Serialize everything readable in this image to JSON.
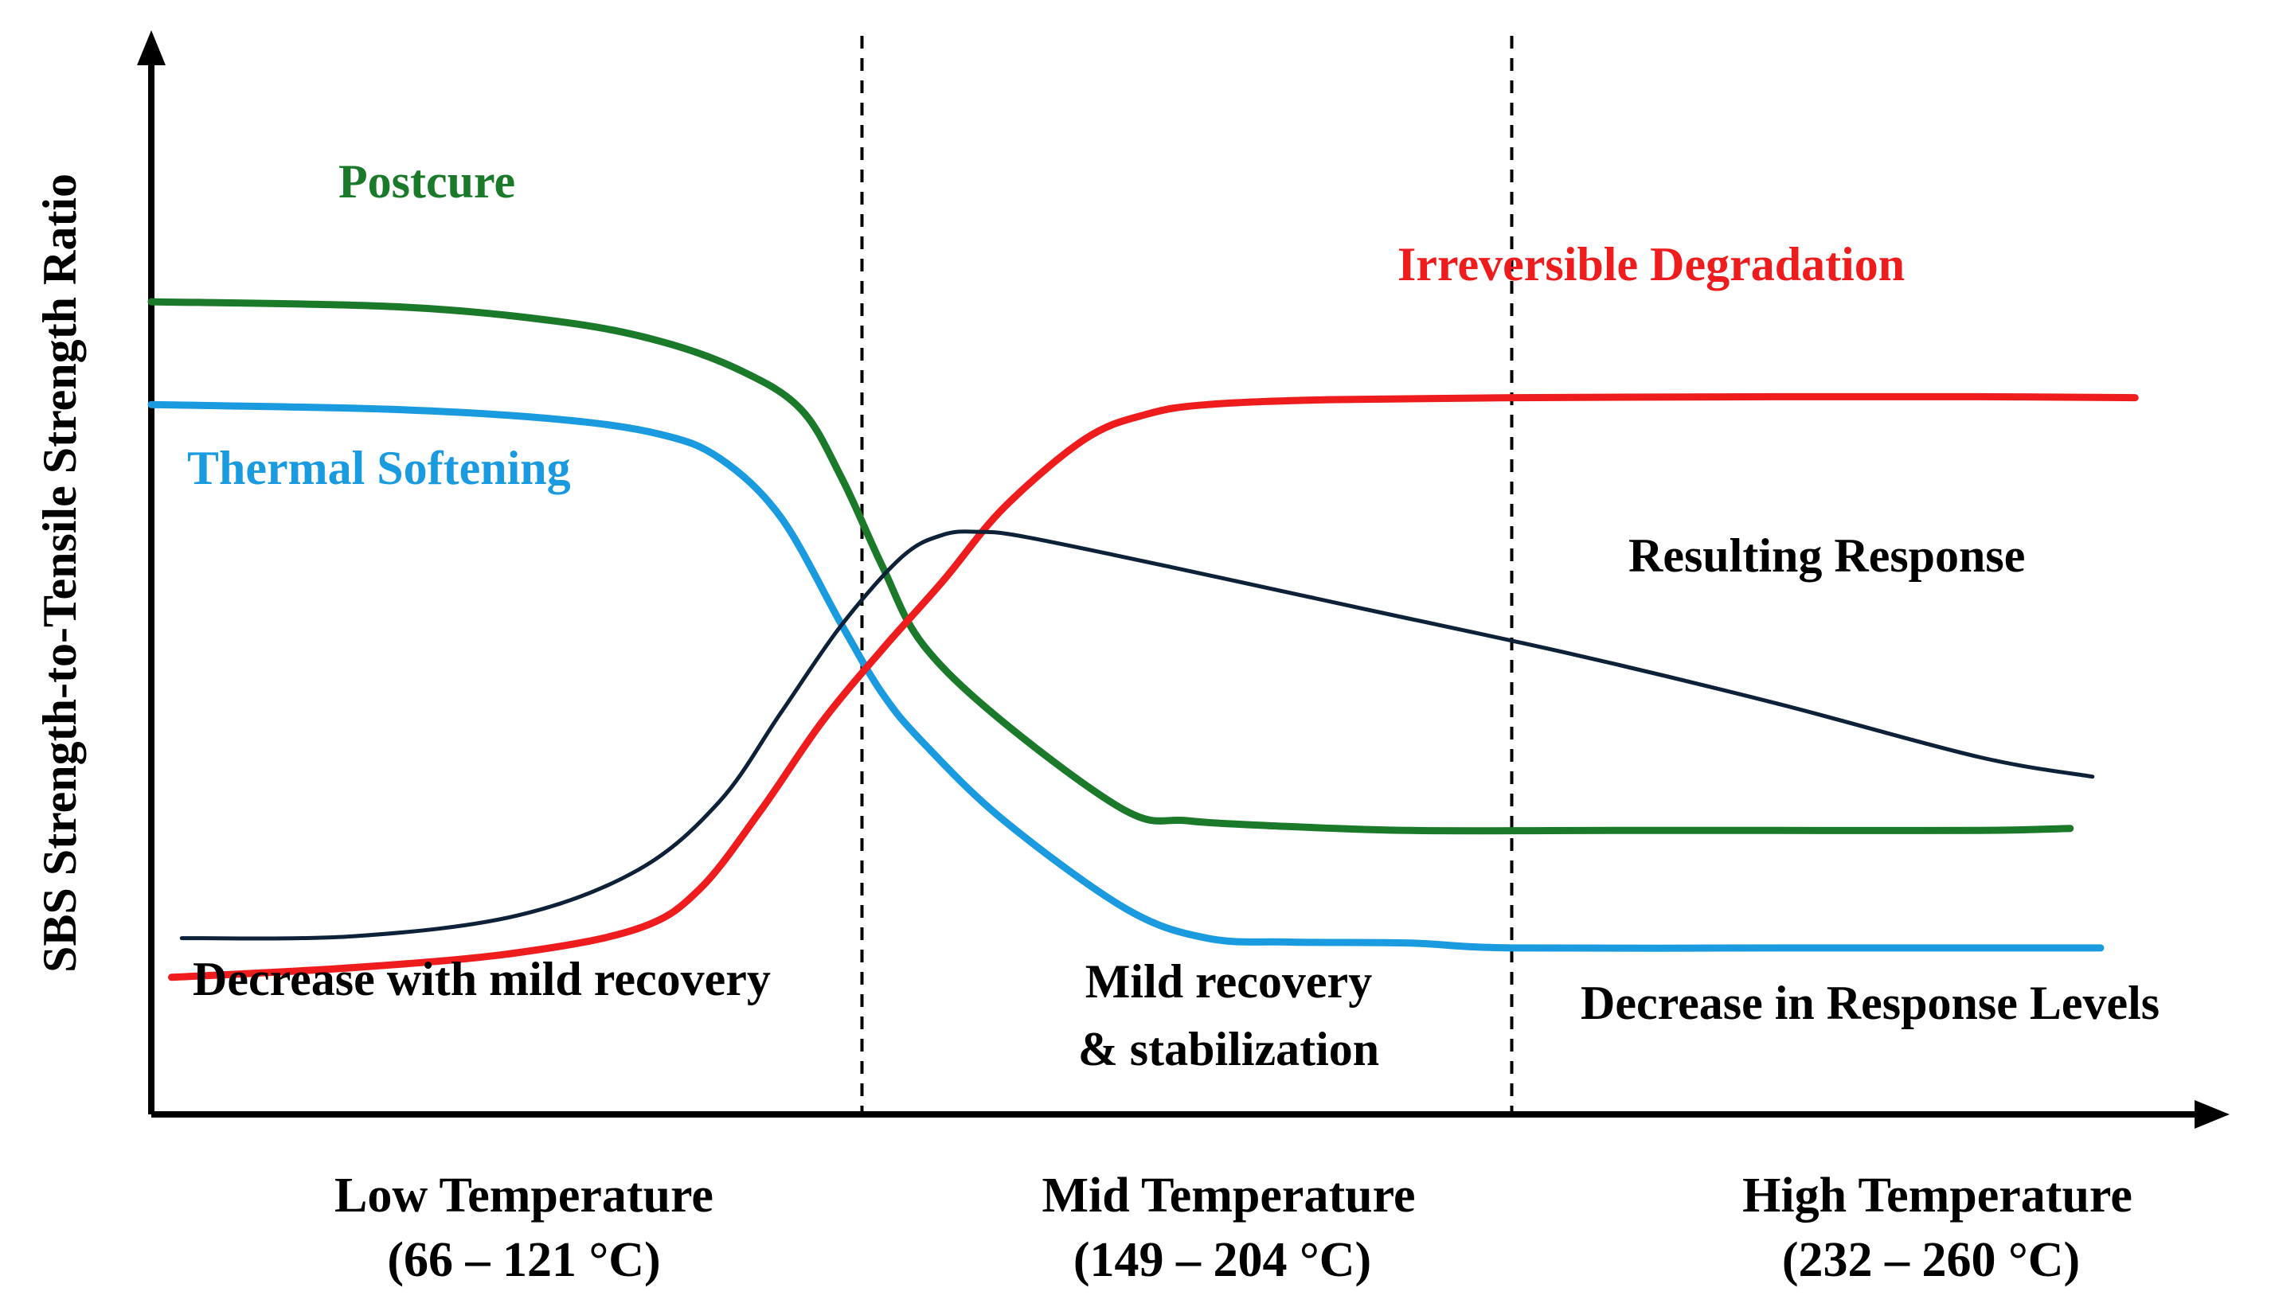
{
  "chart_data": {
    "type": "line",
    "title": "",
    "ylabel": "SBS Strength-to-Tensile Strength Ratio",
    "xlabel": "",
    "xlim": [
      0,
      100
    ],
    "ylim": [
      0,
      100
    ],
    "grid": false,
    "legend": "none (inline curve labels)",
    "regions": [
      {
        "name": "Low Temperature",
        "range": "(66 – 121 °C)",
        "note": "Decrease with mild recovery"
      },
      {
        "name": "Mid Temperature",
        "range": "(149 – 204 °C)",
        "note_line1": "Mild recovery",
        "note_line2": "& stabilization"
      },
      {
        "name": "High Temperature",
        "range": "(232 – 260 °C)",
        "note": "Decrease in Response Levels"
      }
    ],
    "region_boundaries": [
      35,
      67
    ],
    "series": [
      {
        "name": "Postcure",
        "color": "#1b7a2a",
        "x": [
          0,
          12,
          20,
          25,
          29,
          32,
          34,
          36,
          38,
          42,
          48,
          51,
          55,
          62,
          72,
          80,
          90,
          94.5
        ],
        "y": [
          83,
          82.5,
          81,
          79,
          76,
          72,
          65,
          56,
          48,
          40,
          31,
          30,
          29.5,
          29,
          29,
          29,
          29,
          29.2
        ]
      },
      {
        "name": "Thermal Softening",
        "color": "#1a9be0",
        "x": [
          0,
          12,
          20,
          25,
          28,
          31,
          34,
          36,
          38,
          42,
          48,
          52,
          56,
          62,
          67,
          80,
          90,
          96
        ],
        "y": [
          72.5,
          72,
          71,
          69.5,
          67,
          61,
          50,
          43,
          38,
          30,
          21,
          18,
          17.6,
          17.5,
          17,
          17,
          17,
          17
        ]
      },
      {
        "name": "Irreversible Degradation",
        "color": "#ee1c1c",
        "x": [
          1,
          10,
          18,
          24,
          27,
          30,
          33,
          36,
          39,
          42,
          46,
          49,
          52,
          58,
          67,
          80,
          90,
          97.7
        ],
        "y": [
          14,
          15,
          16.5,
          19,
          23,
          31,
          40,
          47.5,
          54.5,
          62,
          69,
          71.5,
          72.5,
          73,
          73.2,
          73.3,
          73.3,
          73.2
        ]
      },
      {
        "name": "Resulting Response",
        "color": "#0d2138",
        "x": [
          1.5,
          10,
          18,
          24,
          28,
          31,
          34,
          37,
          39,
          40.7,
          43,
          50,
          60,
          70,
          80,
          90,
          95.6
        ],
        "y": [
          18,
          18.2,
          20.3,
          25,
          32,
          41,
          50,
          57,
          59.2,
          59.5,
          59,
          56,
          51.5,
          47,
          42,
          36.5,
          34.5
        ]
      }
    ],
    "annotations": {
      "curve_labels": [
        "Postcure",
        "Thermal Softening",
        "Irreversible Degradation",
        "Resulting Response"
      ]
    }
  }
}
